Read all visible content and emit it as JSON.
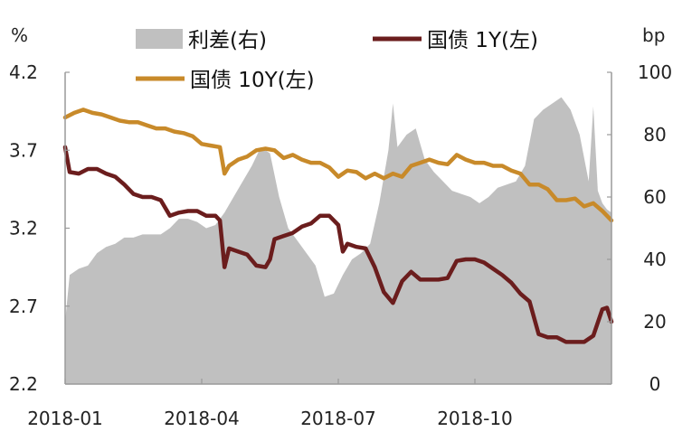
{
  "chart_data": {
    "type": "line",
    "left_unit": "%",
    "right_unit": "bp",
    "legend": {
      "spread": "利差(右)",
      "y1": "国债 1Y(左)",
      "y10": "国债 10Y(左)"
    },
    "colors": {
      "spread": "#c0c0c0",
      "y1": "#6b1d1d",
      "y10": "#c88a2a"
    },
    "x_ticks": [
      "2018-01",
      "2018-04",
      "2018-07",
      "2018-10"
    ],
    "x_tick_positions": [
      0,
      3,
      6,
      9
    ],
    "x_range": [
      0,
      12
    ],
    "left_axis": {
      "min": 2.2,
      "max": 4.2,
      "ticks": [
        "2.2",
        "2.7",
        "3.2",
        "3.7",
        "4.2"
      ]
    },
    "right_axis": {
      "min": 0,
      "max": 100,
      "ticks": [
        "0",
        "20",
        "40",
        "60",
        "80",
        "100"
      ]
    },
    "series": [
      {
        "name": "国债 10Y(左)",
        "axis": "left",
        "points": [
          [
            0.0,
            3.91
          ],
          [
            0.2,
            3.94
          ],
          [
            0.4,
            3.96
          ],
          [
            0.6,
            3.94
          ],
          [
            0.8,
            3.93
          ],
          [
            1.0,
            3.91
          ],
          [
            1.2,
            3.89
          ],
          [
            1.4,
            3.88
          ],
          [
            1.6,
            3.88
          ],
          [
            1.8,
            3.86
          ],
          [
            2.0,
            3.84
          ],
          [
            2.2,
            3.84
          ],
          [
            2.4,
            3.82
          ],
          [
            2.6,
            3.81
          ],
          [
            2.8,
            3.79
          ],
          [
            3.0,
            3.74
          ],
          [
            3.2,
            3.73
          ],
          [
            3.4,
            3.72
          ],
          [
            3.5,
            3.55
          ],
          [
            3.6,
            3.6
          ],
          [
            3.8,
            3.64
          ],
          [
            4.0,
            3.66
          ],
          [
            4.2,
            3.7
          ],
          [
            4.4,
            3.71
          ],
          [
            4.6,
            3.7
          ],
          [
            4.8,
            3.65
          ],
          [
            5.0,
            3.67
          ],
          [
            5.2,
            3.64
          ],
          [
            5.4,
            3.62
          ],
          [
            5.6,
            3.62
          ],
          [
            5.8,
            3.59
          ],
          [
            6.0,
            3.53
          ],
          [
            6.2,
            3.57
          ],
          [
            6.4,
            3.56
          ],
          [
            6.6,
            3.52
          ],
          [
            6.8,
            3.55
          ],
          [
            7.0,
            3.52
          ],
          [
            7.2,
            3.55
          ],
          [
            7.4,
            3.53
          ],
          [
            7.6,
            3.6
          ],
          [
            7.8,
            3.62
          ],
          [
            8.0,
            3.64
          ],
          [
            8.2,
            3.62
          ],
          [
            8.4,
            3.61
          ],
          [
            8.6,
            3.67
          ],
          [
            8.8,
            3.64
          ],
          [
            9.0,
            3.62
          ],
          [
            9.2,
            3.62
          ],
          [
            9.4,
            3.6
          ],
          [
            9.6,
            3.6
          ],
          [
            9.8,
            3.57
          ],
          [
            10.0,
            3.55
          ],
          [
            10.2,
            3.48
          ],
          [
            10.4,
            3.48
          ],
          [
            10.6,
            3.45
          ],
          [
            10.8,
            3.38
          ],
          [
            11.0,
            3.38
          ],
          [
            11.2,
            3.39
          ],
          [
            11.4,
            3.34
          ],
          [
            11.6,
            3.36
          ],
          [
            11.8,
            3.31
          ],
          [
            12.0,
            3.25
          ]
        ]
      },
      {
        "name": "国债 1Y(左)",
        "axis": "left",
        "points": [
          [
            0.0,
            3.72
          ],
          [
            0.1,
            3.56
          ],
          [
            0.3,
            3.55
          ],
          [
            0.5,
            3.58
          ],
          [
            0.7,
            3.58
          ],
          [
            0.9,
            3.55
          ],
          [
            1.1,
            3.53
          ],
          [
            1.3,
            3.48
          ],
          [
            1.5,
            3.42
          ],
          [
            1.7,
            3.4
          ],
          [
            1.9,
            3.4
          ],
          [
            2.1,
            3.38
          ],
          [
            2.3,
            3.28
          ],
          [
            2.5,
            3.3
          ],
          [
            2.7,
            3.31
          ],
          [
            2.9,
            3.31
          ],
          [
            3.1,
            3.28
          ],
          [
            3.3,
            3.28
          ],
          [
            3.4,
            3.25
          ],
          [
            3.5,
            2.95
          ],
          [
            3.6,
            3.07
          ],
          [
            3.8,
            3.05
          ],
          [
            4.0,
            3.03
          ],
          [
            4.2,
            2.96
          ],
          [
            4.4,
            2.95
          ],
          [
            4.5,
            3.0
          ],
          [
            4.6,
            3.13
          ],
          [
            4.8,
            3.15
          ],
          [
            5.0,
            3.17
          ],
          [
            5.2,
            3.21
          ],
          [
            5.4,
            3.23
          ],
          [
            5.6,
            3.28
          ],
          [
            5.8,
            3.28
          ],
          [
            6.0,
            3.22
          ],
          [
            6.1,
            3.05
          ],
          [
            6.2,
            3.1
          ],
          [
            6.4,
            3.08
          ],
          [
            6.6,
            3.07
          ],
          [
            6.8,
            2.95
          ],
          [
            7.0,
            2.79
          ],
          [
            7.2,
            2.72
          ],
          [
            7.4,
            2.86
          ],
          [
            7.6,
            2.92
          ],
          [
            7.8,
            2.87
          ],
          [
            8.0,
            2.87
          ],
          [
            8.2,
            2.87
          ],
          [
            8.4,
            2.88
          ],
          [
            8.6,
            2.99
          ],
          [
            8.8,
            3.0
          ],
          [
            9.0,
            3.0
          ],
          [
            9.2,
            2.98
          ],
          [
            9.4,
            2.94
          ],
          [
            9.6,
            2.9
          ],
          [
            9.8,
            2.85
          ],
          [
            10.0,
            2.78
          ],
          [
            10.2,
            2.73
          ],
          [
            10.4,
            2.52
          ],
          [
            10.6,
            2.5
          ],
          [
            10.8,
            2.5
          ],
          [
            11.0,
            2.47
          ],
          [
            11.2,
            2.47
          ],
          [
            11.4,
            2.47
          ],
          [
            11.6,
            2.51
          ],
          [
            11.8,
            2.68
          ],
          [
            11.9,
            2.69
          ],
          [
            12.0,
            2.6
          ]
        ]
      },
      {
        "name": "利差(右)",
        "axis": "right",
        "type": "area",
        "points": [
          [
            0.0,
            20
          ],
          [
            0.1,
            35
          ],
          [
            0.3,
            37
          ],
          [
            0.5,
            38
          ],
          [
            0.7,
            42
          ],
          [
            0.9,
            44
          ],
          [
            1.1,
            45
          ],
          [
            1.3,
            47
          ],
          [
            1.5,
            47
          ],
          [
            1.7,
            48
          ],
          [
            1.9,
            48
          ],
          [
            2.1,
            48
          ],
          [
            2.3,
            50
          ],
          [
            2.5,
            53
          ],
          [
            2.7,
            53
          ],
          [
            2.9,
            52
          ],
          [
            3.1,
            50
          ],
          [
            3.3,
            51
          ],
          [
            3.5,
            55
          ],
          [
            3.7,
            60
          ],
          [
            3.9,
            65
          ],
          [
            4.1,
            70
          ],
          [
            4.3,
            76
          ],
          [
            4.5,
            74
          ],
          [
            4.7,
            60
          ],
          [
            4.9,
            50
          ],
          [
            5.1,
            46
          ],
          [
            5.3,
            42
          ],
          [
            5.5,
            38
          ],
          [
            5.7,
            28
          ],
          [
            5.9,
            29
          ],
          [
            6.1,
            35
          ],
          [
            6.3,
            40
          ],
          [
            6.5,
            42
          ],
          [
            6.7,
            45
          ],
          [
            6.9,
            58
          ],
          [
            7.1,
            75
          ],
          [
            7.2,
            90
          ],
          [
            7.3,
            76
          ],
          [
            7.5,
            80
          ],
          [
            7.7,
            82
          ],
          [
            7.9,
            72
          ],
          [
            8.1,
            68
          ],
          [
            8.3,
            65
          ],
          [
            8.5,
            62
          ],
          [
            8.7,
            61
          ],
          [
            8.9,
            60
          ],
          [
            9.1,
            58
          ],
          [
            9.3,
            60
          ],
          [
            9.5,
            63
          ],
          [
            9.7,
            64
          ],
          [
            9.9,
            65
          ],
          [
            10.1,
            70
          ],
          [
            10.3,
            85
          ],
          [
            10.5,
            88
          ],
          [
            10.7,
            90
          ],
          [
            10.9,
            92
          ],
          [
            11.1,
            88
          ],
          [
            11.3,
            80
          ],
          [
            11.5,
            65
          ],
          [
            11.6,
            89
          ],
          [
            11.7,
            62
          ],
          [
            11.8,
            58
          ],
          [
            11.9,
            56
          ],
          [
            12.0,
            55
          ]
        ]
      }
    ]
  }
}
